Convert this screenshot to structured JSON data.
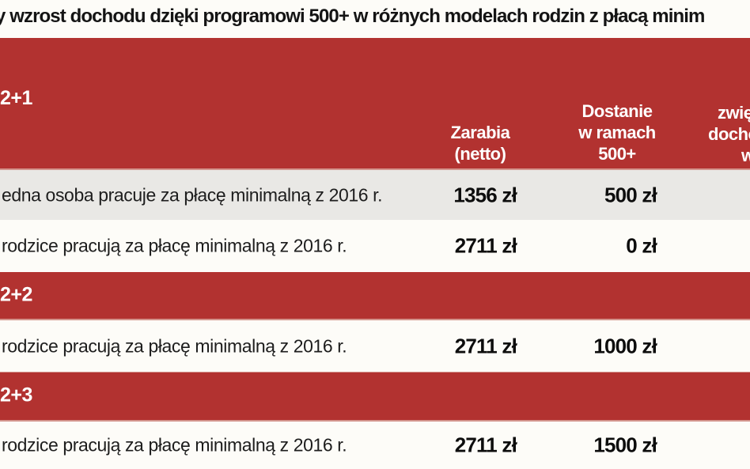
{
  "title": "y wzrost dochodu dzięki programowi 500+ w różnych modelach rodzin z płacą minim",
  "colors": {
    "accent_red": "#b23230",
    "band_edge_pink": "#d4958d",
    "shaded_row": "#e9e8e5",
    "header_text": "#ffffff",
    "body_text": "#1d1d1d"
  },
  "chart_data": {
    "type": "table",
    "section_labels": [
      "2+1",
      "2+2",
      "2+3"
    ],
    "col_headers": {
      "earn": [
        "Zarabia",
        "(netto)"
      ],
      "benefit": [
        "Dostanie",
        "w ramach",
        "500+"
      ],
      "increase_cutoff": [
        "zwię",
        "dochó",
        "w"
      ]
    },
    "rows": [
      {
        "section": "2+1",
        "desc": "edna osoba pracuje za płacę minimalną z 2016 r.",
        "earn_net": "1356 zł",
        "benefit_500": "500 zł"
      },
      {
        "section": "2+1",
        "desc": "rodzice pracują za płacę minimalną z 2016 r.",
        "earn_net": "2711 zł",
        "benefit_500": "0 zł"
      },
      {
        "section": "2+2",
        "desc": "rodzice pracują za płacę minimalną z 2016 r.",
        "earn_net": "2711 zł",
        "benefit_500": "1000 zł"
      },
      {
        "section": "2+3",
        "desc": "rodzice pracują za płacę minimalną z 2016 r.",
        "earn_net": "2711 zł",
        "benefit_500": "1500 zł"
      }
    ]
  }
}
